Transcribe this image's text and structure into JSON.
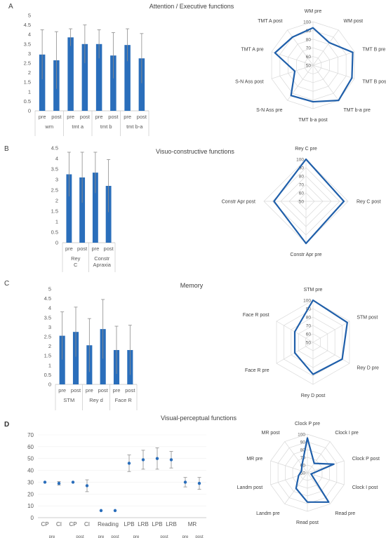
{
  "panels": [
    {
      "letter": "A",
      "title": "Attention / Executive functions",
      "bar": {
        "type": "bar",
        "ylim": [
          0,
          5
        ],
        "yticks": [
          "0",
          "0.5",
          "1",
          "1.5",
          "2",
          "2.5",
          "3",
          "3.5",
          "4",
          "4.5",
          "5"
        ],
        "bars": [
          {
            "label": "pre",
            "value": 2.95,
            "err": 1.3
          },
          {
            "label": "post",
            "value": 2.65,
            "err": 1.5
          },
          {
            "label": "pre",
            "value": 3.85,
            "err": 0.45
          },
          {
            "label": "post",
            "value": 3.5,
            "err": 1.0
          },
          {
            "label": "pre",
            "value": 3.5,
            "err": 0.75
          },
          {
            "label": "post",
            "value": 2.9,
            "err": 1.2
          },
          {
            "label": "pre",
            "value": 3.45,
            "err": 0.85
          },
          {
            "label": "post",
            "value": 2.75,
            "err": 1.3
          }
        ],
        "groups": [
          "wm",
          "tmt a",
          "tmt b",
          "tmt b-a"
        ]
      },
      "radar": {
        "type": "radar",
        "range": [
          50,
          100
        ],
        "ticks": [
          "50",
          "60",
          "70",
          "80",
          "90",
          "100"
        ],
        "axes": [
          "WM pre",
          "WM post",
          "TMT B pre",
          "TMT B post",
          "TMT b-a pre",
          "TMT b-a post",
          "S-N Ass pre",
          "S-N Ass post",
          "TMT A pre",
          "TMT A post"
        ],
        "values": [
          93,
          82,
          98,
          97,
          100,
          92,
          93,
          72,
          96,
          90
        ]
      }
    },
    {
      "letter": "B",
      "title": "Visuo-constructive functions",
      "bar": {
        "type": "bar",
        "ylim": [
          0,
          4.5
        ],
        "yticks": [
          "0",
          "0.5",
          "1",
          "1.5",
          "2",
          "2.5",
          "3",
          "3.5",
          "4",
          "4.5"
        ],
        "bars": [
          {
            "label": "pre",
            "value": 3.25,
            "err": 1.05
          },
          {
            "label": "post",
            "value": 3.1,
            "err": 1.2
          },
          {
            "label": "pre",
            "value": 3.33,
            "err": 0.97
          },
          {
            "label": "post",
            "value": 2.7,
            "err": 1.25
          }
        ],
        "groups": [
          "Rey C",
          "Constr Apraxia"
        ]
      },
      "radar": {
        "type": "radar",
        "range": [
          50,
          100
        ],
        "ticks": [
          "50",
          "60",
          "70",
          "80",
          "90",
          "100"
        ],
        "axes": [
          "Rey C pre",
          "Rey C post",
          "Constr Apr pre",
          "Constr Apr post"
        ],
        "values": [
          100,
          95,
          100,
          88
        ]
      }
    },
    {
      "letter": "C",
      "title": "Memory",
      "bar": {
        "type": "bar",
        "ylim": [
          0,
          5
        ],
        "yticks": [
          "0",
          "0.5",
          "1",
          "1.5",
          "2",
          "2.5",
          "3",
          "3.5",
          "4",
          "4.5",
          "5"
        ],
        "bars": [
          {
            "label": "pre",
            "value": 2.55,
            "err": 1.25
          },
          {
            "label": "post",
            "value": 2.75,
            "err": 1.3
          },
          {
            "label": "pre",
            "value": 2.05,
            "err": 1.4
          },
          {
            "label": "post",
            "value": 2.9,
            "err": 1.55
          },
          {
            "label": "pre",
            "value": 1.8,
            "err": 1.25
          },
          {
            "label": "post",
            "value": 1.8,
            "err": 1.3
          }
        ],
        "groups": [
          "STM",
          "Rey d",
          "Face R"
        ]
      },
      "radar": {
        "type": "radar",
        "range": [
          50,
          100
        ],
        "ticks": [
          "50",
          "60",
          "70",
          "80",
          "90",
          "100"
        ],
        "axes": [
          "STM pre",
          "STM post",
          "Rey D pre",
          "Rey D post",
          "Face R pre",
          "Face R post"
        ],
        "values": [
          100,
          97,
          90,
          88,
          75,
          75
        ]
      }
    },
    {
      "letter": "D",
      "title": "Visual-perceptual functions",
      "scatter": {
        "type": "scatter",
        "ylim": [
          0,
          70
        ],
        "yticks": [
          "0",
          "10",
          "20",
          "30",
          "40",
          "50",
          "60",
          "70"
        ],
        "points": [
          {
            "x": 1,
            "y": 30,
            "err": 0
          },
          {
            "x": 2,
            "y": 29,
            "err": 1.5
          },
          {
            "x": 3,
            "y": 30,
            "err": 0
          },
          {
            "x": 4,
            "y": 27,
            "err": 5
          },
          {
            "x": 5,
            "y": 6,
            "err": 0
          },
          {
            "x": 6,
            "y": 6,
            "err": 0
          },
          {
            "x": 7,
            "y": 46,
            "err": 7
          },
          {
            "x": 8,
            "y": 49,
            "err": 8
          },
          {
            "x": 9,
            "y": 50,
            "err": 9
          },
          {
            "x": 10,
            "y": 49,
            "err": 7
          },
          {
            "x": 11,
            "y": 30,
            "err": 4
          },
          {
            "x": 12,
            "y": 29,
            "err": 5
          }
        ],
        "xlabels": [
          "CP",
          "CI",
          "CP",
          "CI",
          "Reading",
          "LPB",
          "LRB",
          "LPB",
          "LRB",
          "MR"
        ],
        "sublabels": [
          "pre",
          "post",
          "pre",
          "post",
          "pre",
          "post",
          "pre",
          "post"
        ]
      },
      "radar": {
        "type": "radar",
        "range": [
          50,
          100
        ],
        "ticks": [
          "50",
          "60",
          "70",
          "80",
          "90",
          "100"
        ],
        "axes": [
          "Clock P pre",
          "Clock I pre",
          "Clock P post",
          "Clock I post",
          "Read pre",
          "Read post",
          "Landm pre",
          "Landm post",
          "MR pre",
          "MR post"
        ],
        "values": [
          95,
          65,
          86,
          55,
          97,
          88,
          75,
          62,
          58,
          62
        ]
      }
    }
  ],
  "colors": {
    "bar": "#2A6EBB",
    "radar_line": "#1F5FAA",
    "grid": "#D9D9D9",
    "axis": "#BFBFBF",
    "error": "#8C8C8C"
  }
}
